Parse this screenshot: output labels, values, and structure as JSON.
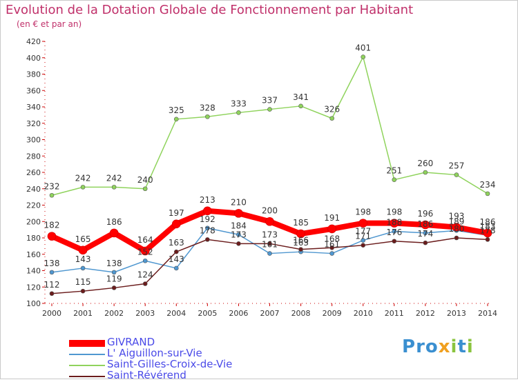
{
  "title": "Evolution de la Dotation Globale de Fonctionnement par Habitant",
  "subtitle": "(en € et par an)",
  "logo": "Proxiti",
  "legend": [
    {
      "name": "GIVRAND",
      "color": "#ff0000"
    },
    {
      "name": "L' Aiguillon-sur-Vie",
      "color": "#4f97d0"
    },
    {
      "name": "Saint-Gilles-Croix-de-Vie",
      "color": "#8fd35c"
    },
    {
      "name": "Saint-Révérend",
      "color": "#6b1c1c"
    }
  ],
  "chart_data": {
    "type": "line",
    "title": "Evolution de la Dotation Globale de Fonctionnement par Habitant",
    "subtitle": "(en € et par an)",
    "x": [
      "2000",
      "2001",
      "2002",
      "2003",
      "2004",
      "2005",
      "2006",
      "2007",
      "2008",
      "2009",
      "2010",
      "2011",
      "2012",
      "2013",
      "2014"
    ],
    "ylim": [
      100,
      420
    ],
    "yticks": [
      100,
      120,
      140,
      160,
      180,
      200,
      220,
      240,
      260,
      280,
      300,
      320,
      340,
      360,
      380,
      400,
      420
    ],
    "grid": false,
    "legend_position": "bottom-left",
    "series": [
      {
        "name": "GIVRAND",
        "color": "#ff0000",
        "values": [
          182,
          165,
          186,
          164,
          197,
          213,
          210,
          200,
          185,
          191,
          198,
          198,
          196,
          193,
          186
        ]
      },
      {
        "name": "L' Aiguillon-sur-Vie",
        "color": "#4f97d0",
        "values": [
          138,
          143,
          138,
          152,
          143,
          192,
          184,
          161,
          163,
          161,
          177,
          188,
          186,
          189,
          183
        ]
      },
      {
        "name": "Saint-Gilles-Croix-de-Vie",
        "color": "#8fd35c",
        "values": [
          232,
          242,
          242,
          240,
          325,
          328,
          333,
          337,
          341,
          326,
          401,
          251,
          260,
          257,
          234
        ]
      },
      {
        "name": "Saint-Révérend",
        "color": "#6b1c1c",
        "values": [
          112,
          115,
          119,
          124,
          163,
          178,
          173,
          173,
          166,
          168,
          171,
          176,
          174,
          180,
          178
        ]
      }
    ]
  }
}
